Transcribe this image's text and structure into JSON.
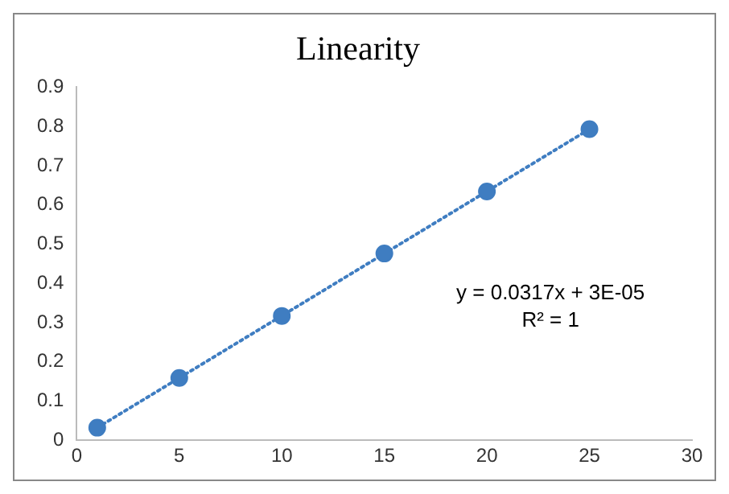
{
  "chart_data": {
    "type": "scatter",
    "title": "Linearity",
    "xlim": [
      0,
      30
    ],
    "xticks": [
      0,
      5,
      10,
      15,
      20,
      25,
      30
    ],
    "ylim": [
      0,
      0.9
    ],
    "yticks": [
      0,
      0.1,
      0.2,
      0.3,
      0.4,
      0.5,
      0.6,
      0.7,
      0.8,
      0.9
    ],
    "grid": false,
    "legend": false,
    "series": [
      {
        "type": "scatter",
        "color": "#3f7dc1",
        "marker": "circle",
        "x": [
          1,
          5,
          10,
          15,
          20,
          25
        ],
        "values": [
          0.032,
          0.159,
          0.317,
          0.476,
          0.634,
          0.793
        ]
      },
      {
        "type": "line",
        "color": "#3f7dc1",
        "marker": "none",
        "line_style": "dotted",
        "x": [
          1,
          25
        ],
        "values": [
          0.032,
          0.793
        ]
      }
    ],
    "annotations": [
      "y = 0.0317x + 3E-05",
      "R² = 1"
    ]
  }
}
